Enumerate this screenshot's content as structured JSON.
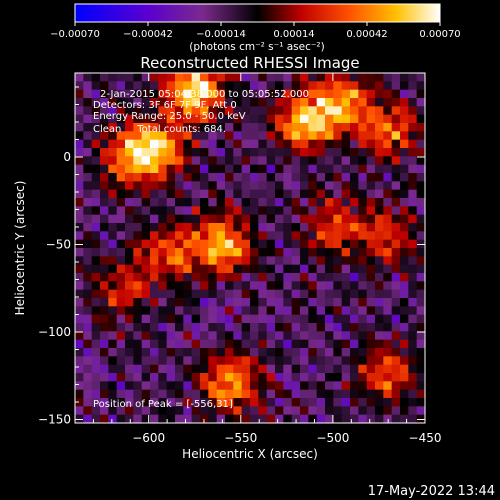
{
  "chart_data": {
    "type": "heatmap",
    "title": "Reconstructed RHESSI Image",
    "xlabel": "Heliocentric X (arcsec)",
    "ylabel": "Heliocentric Y (arcsec)",
    "xlim": [
      -640,
      -450
    ],
    "ylim": [
      -152,
      48
    ],
    "xticks": [
      -600,
      -550,
      -500,
      -450
    ],
    "xtick_labels": [
      "−600",
      "−550",
      "−500",
      "−450"
    ],
    "yticks": [
      0,
      -50,
      -100,
      -150
    ],
    "ytick_labels": [
      "0",
      "−50",
      "−100",
      "−150"
    ],
    "colorbar": {
      "min": -0.0007,
      "max": 0.0007,
      "ticks": [
        -0.0007,
        -0.00042,
        -0.00014,
        0.00014,
        0.00042,
        0.0007
      ],
      "tick_labels": [
        "−0.00070",
        "−0.00042",
        "−0.00014",
        "0.00014",
        "0.00042",
        "0.00070"
      ],
      "unit_label": "(photons cm⁻² s⁻¹ asec⁻²)",
      "colormap": [
        "#0000ff",
        "#5a00d0",
        "#7a2a8c",
        "#000000",
        "#c00000",
        "#ff5000",
        "#ffc000",
        "#ffffff"
      ]
    },
    "annotations": [
      "2-Jan-2015 05:04:38.000 to 05:05:52.000",
      "Detectors: 3F 6F 7F 9F, Att 0",
      "Energy Range: 25.0 - 50.0 keV",
      "Clean     Total counts: 684."
    ],
    "peak_label": "Position of Peak = [-556,31]",
    "peak_position": [
      -556,
      31
    ],
    "bright_sources": [
      {
        "x": -575,
        "y": 38,
        "intensity": 1.0
      },
      {
        "x": -515,
        "y": 20,
        "intensity": 0.85
      },
      {
        "x": -495,
        "y": 32,
        "intensity": 0.7
      },
      {
        "x": -470,
        "y": 15,
        "intensity": 0.6
      },
      {
        "x": -595,
        "y": 5,
        "intensity": 0.75
      },
      {
        "x": -610,
        "y": 0,
        "intensity": 0.6
      },
      {
        "x": -560,
        "y": -50,
        "intensity": 0.8
      },
      {
        "x": -590,
        "y": -55,
        "intensity": 0.55
      },
      {
        "x": -500,
        "y": -40,
        "intensity": 0.55
      },
      {
        "x": -470,
        "y": -45,
        "intensity": 0.5
      },
      {
        "x": -555,
        "y": -130,
        "intensity": 0.75
      },
      {
        "x": -470,
        "y": -125,
        "intensity": 0.55
      },
      {
        "x": -615,
        "y": -75,
        "intensity": 0.45
      }
    ]
  },
  "footer": {
    "timestamp": "17-May-2022 13:44"
  }
}
